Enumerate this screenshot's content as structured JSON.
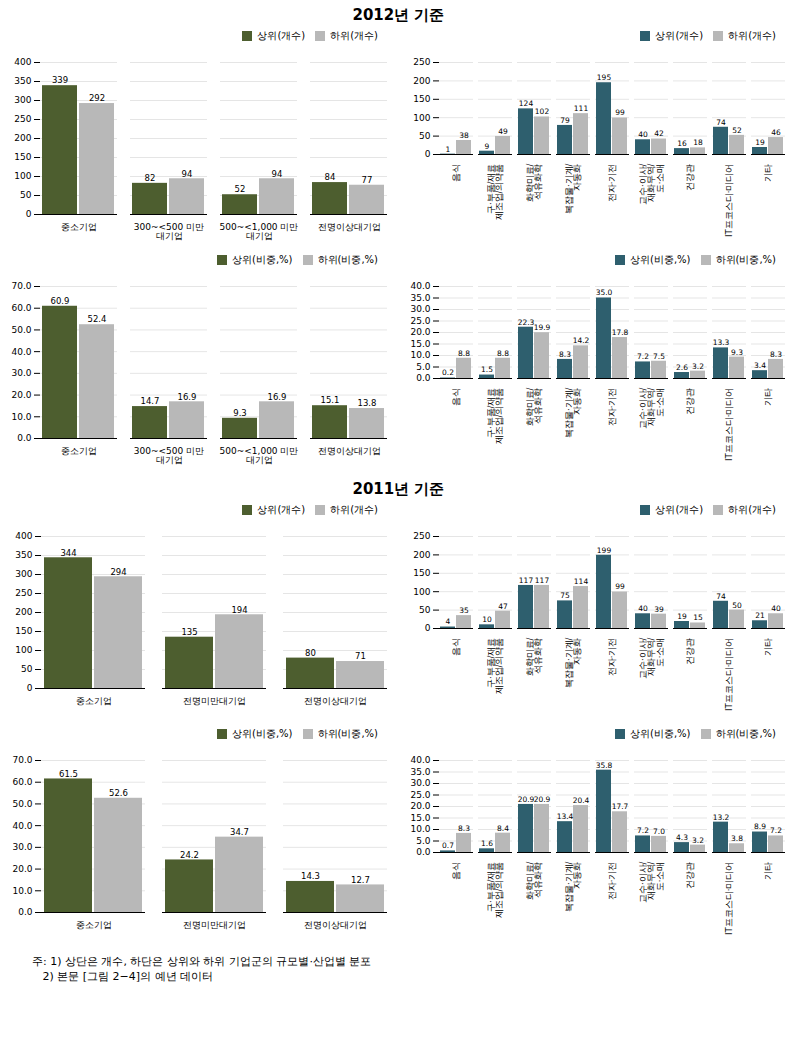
{
  "chart_data": [
    {
      "type": "bar",
      "title": "2012년 기준",
      "categories": [
        "중소기업",
        "300~<500 미만\n대기업",
        "500~<1,000 미만\n대기업",
        "전명이상대기업"
      ],
      "series": [
        {
          "name": "상위(개수)",
          "color": "#4d5e2f",
          "values": [
            339,
            82,
            52,
            84
          ]
        },
        {
          "name": "하위(개수)",
          "color": "#b8b8b8",
          "values": [
            292,
            94,
            94,
            77
          ]
        }
      ],
      "ylim": [
        0,
        400
      ],
      "yticks": [
        0,
        50,
        100,
        150,
        200,
        250,
        300,
        350,
        400
      ],
      "grid": true,
      "legend": "upper right",
      "data_labels": true
    },
    {
      "type": "bar",
      "categories": [
        "음식",
        "구·부품/재료\n제조업/의약품",
        "화학미료/\n석유화학",
        "복잡물·기계/\n자동화",
        "전자·기전",
        "교수·이사/\n재화무역/\n도·소매",
        "건강관",
        "IT프코스디·미디어",
        "기타"
      ],
      "series": [
        {
          "name": "상위(개수)",
          "color": "#2e5f6e",
          "values": [
            1,
            9,
            124,
            79,
            195,
            40,
            16,
            74,
            19
          ]
        },
        {
          "name": "하위(개수)",
          "color": "#b8b8b8",
          "values": [
            38,
            49,
            102,
            111,
            99,
            42,
            18,
            52,
            46
          ]
        }
      ],
      "ylim": [
        0,
        250
      ],
      "yticks": [
        0,
        50,
        100,
        150,
        200,
        250
      ],
      "grid": true,
      "legend": "upper right",
      "data_labels": true
    },
    {
      "type": "bar",
      "categories": [
        "중소기업",
        "300~<500 미만\n대기업",
        "500~<1,000 미만\n대기업",
        "전명이상대기업"
      ],
      "series": [
        {
          "name": "상위(비중,%)",
          "color": "#4d5e2f",
          "values": [
            60.9,
            14.7,
            9.3,
            15.1
          ]
        },
        {
          "name": "하위(비중,%)",
          "color": "#b8b8b8",
          "values": [
            52.4,
            16.9,
            16.9,
            13.8
          ]
        }
      ],
      "ylim": [
        0,
        70
      ],
      "yticks": [
        {
          "value": 0,
          "label": "0.0"
        },
        {
          "value": 10,
          "label": "10.0"
        },
        {
          "value": 20,
          "label": "20.0"
        },
        {
          "value": 30,
          "label": "30.0"
        },
        {
          "value": 40,
          "label": "40.0"
        },
        {
          "value": 50,
          "label": "50.0"
        },
        {
          "value": 60,
          "label": "60.0"
        },
        {
          "value": 70,
          "label": "70.0"
        }
      ],
      "grid": true,
      "legend": "upper right",
      "data_labels": true
    },
    {
      "type": "bar",
      "categories": [
        "음식",
        "구·부품/재료\n제조업/의약품",
        "화학미료/\n석유화학",
        "복잡물·기계/\n자동화",
        "전자·기전",
        "교수·이사/\n재화무역/\n도·소매",
        "건강관",
        "IT프코스디·미디어",
        "기타"
      ],
      "series": [
        {
          "name": "상위(비중,%)",
          "color": "#2e5f6e",
          "values": [
            0.2,
            1.5,
            22.3,
            8.3,
            35.0,
            7.2,
            2.6,
            13.3,
            3.4
          ],
          "value_labels": [
            "0.2",
            "1.5",
            "22.3",
            "8.3",
            "35.0",
            "7.2",
            "2.6",
            "13.3",
            "3.4"
          ]
        },
        {
          "name": "하위(비중,%)",
          "color": "#b8b8b8",
          "values": [
            8.8,
            8.8,
            19.9,
            14.2,
            17.8,
            7.5,
            3.2,
            9.3,
            8.3
          ]
        }
      ],
      "ylim": [
        0,
        40
      ],
      "yticks": [
        {
          "value": 0,
          "label": "0.0"
        },
        {
          "value": 5,
          "label": "5.0"
        },
        {
          "value": 10,
          "label": "10.0"
        },
        {
          "value": 15,
          "label": "15.0"
        },
        {
          "value": 20,
          "label": "20.0"
        },
        {
          "value": 25,
          "label": "25.0"
        },
        {
          "value": 30,
          "label": "30.0"
        },
        {
          "value": 35,
          "label": "35.0"
        },
        {
          "value": 40,
          "label": "40.0"
        }
      ],
      "grid": true,
      "legend": "upper right",
      "data_labels": true
    },
    {
      "type": "bar",
      "title": "2011년 기준",
      "categories": [
        "중소기업",
        "전명미만대기업",
        "전명이상대기업"
      ],
      "series": [
        {
          "name": "상위(개수)",
          "color": "#4d5e2f",
          "values": [
            344,
            135,
            80
          ]
        },
        {
          "name": "하위(개수)",
          "color": "#b8b8b8",
          "values": [
            294,
            194,
            71
          ]
        }
      ],
      "ylim": [
        0,
        400
      ],
      "yticks": [
        0,
        50,
        100,
        150,
        200,
        250,
        300,
        350,
        400
      ],
      "grid": true,
      "legend": "upper right",
      "data_labels": true
    },
    {
      "type": "bar",
      "categories": [
        "음식",
        "구·부품/재료\n제조업/의약품",
        "화학미료/\n석유화학",
        "복잡물·기계/\n자동화",
        "전자·기전",
        "교수·이사/\n재화무역/\n도·소매",
        "건강관",
        "IT프코스디·미디어",
        "기타"
      ],
      "series": [
        {
          "name": "상위(개수)",
          "color": "#2e5f6e",
          "values": [
            4,
            10,
            117,
            75,
            199,
            40,
            19,
            74,
            21
          ]
        },
        {
          "name": "하위(개수)",
          "color": "#b8b8b8",
          "values": [
            35,
            47,
            117,
            114,
            99,
            39,
            15,
            50,
            40
          ]
        }
      ],
      "ylim": [
        0,
        250
      ],
      "yticks": [
        0,
        50,
        100,
        150,
        200,
        250
      ],
      "grid": true,
      "legend": "upper right",
      "data_labels": true
    },
    {
      "type": "bar",
      "categories": [
        "중소기업",
        "전명미만대기업",
        "전명이상대기업"
      ],
      "series": [
        {
          "name": "상위(비중,%)",
          "color": "#4d5e2f",
          "values": [
            61.5,
            24.2,
            14.3
          ]
        },
        {
          "name": "하위(비중,%)",
          "color": "#b8b8b8",
          "values": [
            52.6,
            34.7,
            12.7
          ]
        }
      ],
      "ylim": [
        0,
        70
      ],
      "yticks": [
        {
          "value": 0,
          "label": "0.0"
        },
        {
          "value": 10,
          "label": "10.0"
        },
        {
          "value": 20,
          "label": "20.0"
        },
        {
          "value": 30,
          "label": "30.0"
        },
        {
          "value": 40,
          "label": "40.0"
        },
        {
          "value": 50,
          "label": "50.0"
        },
        {
          "value": 60,
          "label": "60.0"
        },
        {
          "value": 70,
          "label": "70.0"
        }
      ],
      "grid": true,
      "legend": "upper right",
      "data_labels": true
    },
    {
      "type": "bar",
      "categories": [
        "음식",
        "구·부품/재료\n제조업/의약품",
        "화학미료/\n석유화학",
        "복잡물·기계/\n자동화",
        "전자·기전",
        "교수·이사/\n재화무역/\n도·소매",
        "건강관",
        "IT프코스디·미디어",
        "기타"
      ],
      "series": [
        {
          "name": "상위(비중,%)",
          "color": "#2e5f6e",
          "values": [
            0.7,
            1.6,
            20.9,
            13.4,
            35.8,
            7.2,
            4.3,
            13.2,
            8.9
          ]
        },
        {
          "name": "하위(비중,%)",
          "color": "#b8b8b8",
          "values": [
            8.3,
            8.4,
            20.9,
            20.4,
            17.7,
            7.0,
            3.2,
            3.8,
            7.2
          ],
          "value_labels": [
            "8.3",
            "8.4",
            "20.9",
            "20.4",
            "17.7",
            "7.0",
            "3.2",
            "3.8",
            "7.2"
          ]
        }
      ],
      "ylim": [
        0,
        40
      ],
      "yticks": [
        {
          "value": 0,
          "label": "0.0"
        },
        {
          "value": 5,
          "label": "5.0"
        },
        {
          "value": 10,
          "label": "10.0"
        },
        {
          "value": 15,
          "label": "15.0"
        },
        {
          "value": 20,
          "label": "20.0"
        },
        {
          "value": 25,
          "label": "25.0"
        },
        {
          "value": 30,
          "label": "30.0"
        },
        {
          "value": 35,
          "label": "35.0"
        },
        {
          "value": 40,
          "label": "40.0"
        }
      ],
      "grid": true,
      "legend": "upper right",
      "data_labels": true,
      "annotations": [
        "주: 1) 상단은 개수, 하단은 상위와 하위 기업군의 규모별·산업별 분포",
        "   2) 본문 [그림 2−4]의 예년 데이터"
      ]
    }
  ]
}
